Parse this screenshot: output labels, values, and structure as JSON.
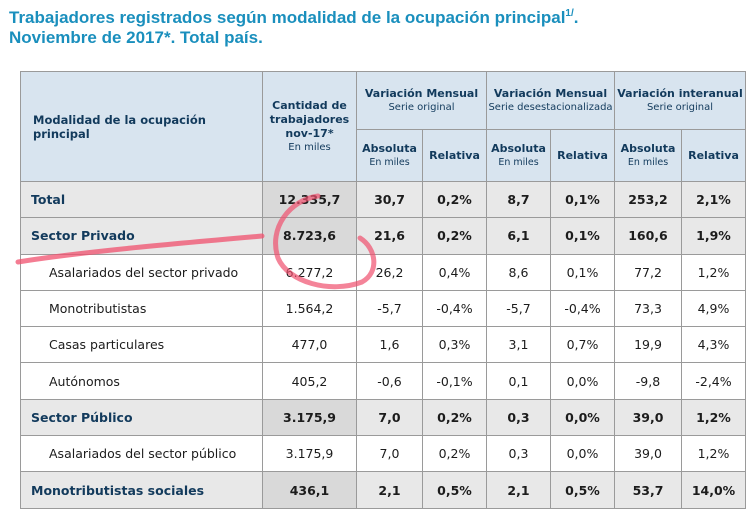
{
  "title": {
    "line1": "Trabajadores registrados según modalidad de la ocupación principal",
    "footnote": "1/",
    "dot": ".",
    "line2": "Noviembre de 2017*. Total país."
  },
  "header": {
    "row_label": "Modalidad de la ocupación principal",
    "cantidad": {
      "line1": "Cantidad de",
      "line2": "trabajadores",
      "line3": "nov-17*",
      "unit": "En miles"
    },
    "var_mensual": {
      "title": "Variación Mensual",
      "subtitle": "Serie original"
    },
    "var_mensual_desest": {
      "title": "Variación Mensual",
      "subtitle": "Serie desestacionalizada"
    },
    "var_interanual": {
      "title": "Variación interanual",
      "subtitle": "Serie original"
    },
    "absoluta": "Absoluta",
    "absoluta_unit": "En miles",
    "relativa": "Relativa"
  },
  "rows": [
    {
      "label": "Total",
      "cantidad": "12.335,7",
      "m_abs": "30,7",
      "m_rel": "0,2%",
      "d_abs": "8,7",
      "d_rel": "0,1%",
      "i_abs": "253,2",
      "i_rel": "2,1%"
    },
    {
      "label": "Sector Privado",
      "cantidad": "8.723,6",
      "m_abs": "21,6",
      "m_rel": "0,2%",
      "d_abs": "6,1",
      "d_rel": "0,1%",
      "i_abs": "160,6",
      "i_rel": "1,9%"
    },
    {
      "label": "Asalariados del sector privado",
      "cantidad": "6.277,2",
      "m_abs": "26,2",
      "m_rel": "0,4%",
      "d_abs": "8,6",
      "d_rel": "0,1%",
      "i_abs": "77,2",
      "i_rel": "1,2%"
    },
    {
      "label": "Monotributistas",
      "cantidad": "1.564,2",
      "m_abs": "-5,7",
      "m_rel": "-0,4%",
      "d_abs": "-5,7",
      "d_rel": "-0,4%",
      "i_abs": "73,3",
      "i_rel": "4,9%"
    },
    {
      "label": "Casas particulares",
      "cantidad": "477,0",
      "m_abs": "1,6",
      "m_rel": "0,3%",
      "d_abs": "3,1",
      "d_rel": "0,7%",
      "i_abs": "19,9",
      "i_rel": "4,3%"
    },
    {
      "label": "Autónomos",
      "cantidad": "405,2",
      "m_abs": "-0,6",
      "m_rel": "-0,1%",
      "d_abs": "0,1",
      "d_rel": "0,0%",
      "i_abs": "-9,8",
      "i_rel": "-2,4%"
    },
    {
      "label": "Sector Público",
      "cantidad": "3.175,9",
      "m_abs": "7,0",
      "m_rel": "0,2%",
      "d_abs": "0,3",
      "d_rel": "0,0%",
      "i_abs": "39,0",
      "i_rel": "1,2%"
    },
    {
      "label": "Asalariados del sector público",
      "cantidad": "3.175,9",
      "m_abs": "7,0",
      "m_rel": "0,2%",
      "d_abs": "0,3",
      "d_rel": "0,0%",
      "i_abs": "39,0",
      "i_rel": "1,2%"
    },
    {
      "label": "Monotributistas sociales",
      "cantidad": "436,1",
      "m_abs": "2,1",
      "m_rel": "0,5%",
      "d_abs": "2,1",
      "d_rel": "0,5%",
      "i_abs": "53,7",
      "i_rel": "14,0%"
    }
  ],
  "annotation": {
    "color": "#f0506e"
  }
}
